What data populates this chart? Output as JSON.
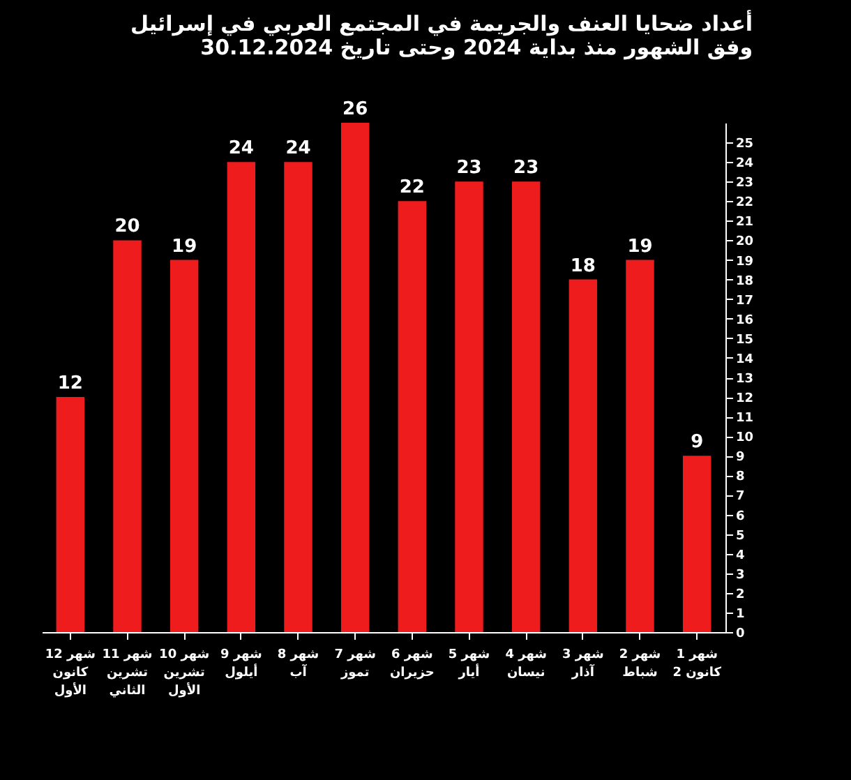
{
  "chart_data": {
    "type": "bar",
    "title": "أعداد ضحايا العنف والجريمة في المجتمع العربي في إسرائيل\nوفق الشهور منذ بداية 2024 وحتى تاريخ 30.12.2024",
    "categories": [
      "شهر 12\nكانون\nالأول",
      "شهر 11\nتشرين\nالثاني",
      "شهر 10\nتشرين\nالأول",
      "شهر 9\nأيلول",
      "شهر 8\nآب",
      "شهر 7\nتموز",
      "شهر 6\nحزيران",
      "شهر 5\nأيار",
      "شهر 4\nنيسان",
      "شهر 3\nآذار",
      "شهر 2\nشباط",
      "شهر 1\nكانون 2"
    ],
    "values": [
      12,
      20,
      19,
      24,
      24,
      26,
      22,
      23,
      23,
      18,
      19,
      9
    ],
    "color": "#ee1c1c",
    "data_labels": true,
    "grid": false,
    "ylim": [
      0,
      26
    ],
    "yticks": [
      0,
      1,
      2,
      3,
      4,
      5,
      6,
      7,
      8,
      9,
      10,
      11,
      12,
      13,
      14,
      15,
      16,
      17,
      18,
      19,
      20,
      21,
      22,
      23,
      24,
      25
    ]
  }
}
